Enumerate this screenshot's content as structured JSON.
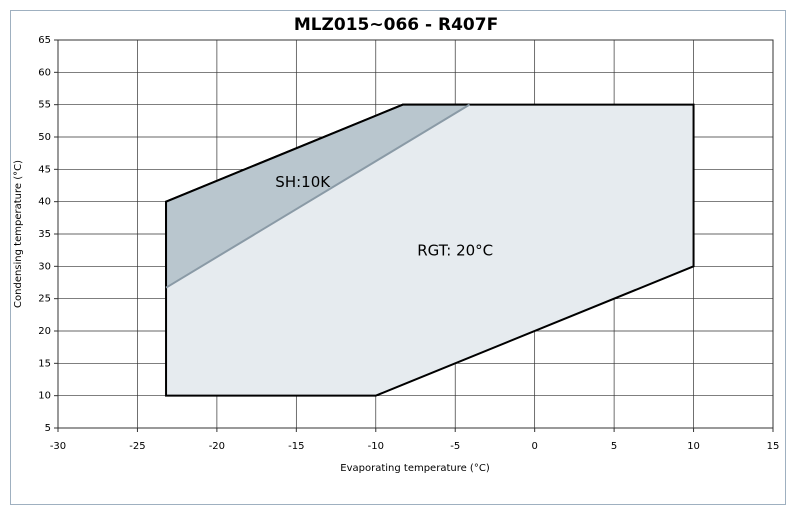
{
  "chart_data": {
    "type": "area",
    "title": "MLZ015~066  - R407F",
    "x_label": "Evaporating temperature (°C)",
    "y_label": "Condensing temperature (°C)",
    "xlim": [
      -30,
      15
    ],
    "ylim": [
      5,
      65
    ],
    "xticks": [
      -30,
      -25,
      -20,
      -15,
      -10,
      -5,
      0,
      5,
      10,
      15
    ],
    "yticks": [
      5,
      10,
      15,
      20,
      25,
      30,
      35,
      40,
      45,
      50,
      55,
      60,
      65
    ],
    "grid": true,
    "series": [
      {
        "color": "#000000",
        "fill": "#e6ebef",
        "closed": true,
        "x": [
          -23.2,
          -10,
          10,
          10,
          -8.3,
          -23.2
        ],
        "values": [
          10,
          10,
          30,
          55,
          55,
          40
        ]
      },
      {
        "color": "#000000",
        "fill": "#b9c6ce",
        "closed": false,
        "x": [
          -4.1,
          -8.3,
          -23.2,
          -23.2
        ],
        "values": [
          55,
          55,
          40,
          26.7
        ]
      },
      {
        "color": "#8a9aa6",
        "closed": false,
        "x": [
          -23.2,
          -4.1
        ],
        "values": [
          26.7,
          55
        ]
      }
    ],
    "annotations": [
      {
        "text": "SH:10K",
        "x": -14.6,
        "y": 43
      },
      {
        "text": "RGT: 20°C",
        "x": -5,
        "y": 32.4
      }
    ]
  }
}
